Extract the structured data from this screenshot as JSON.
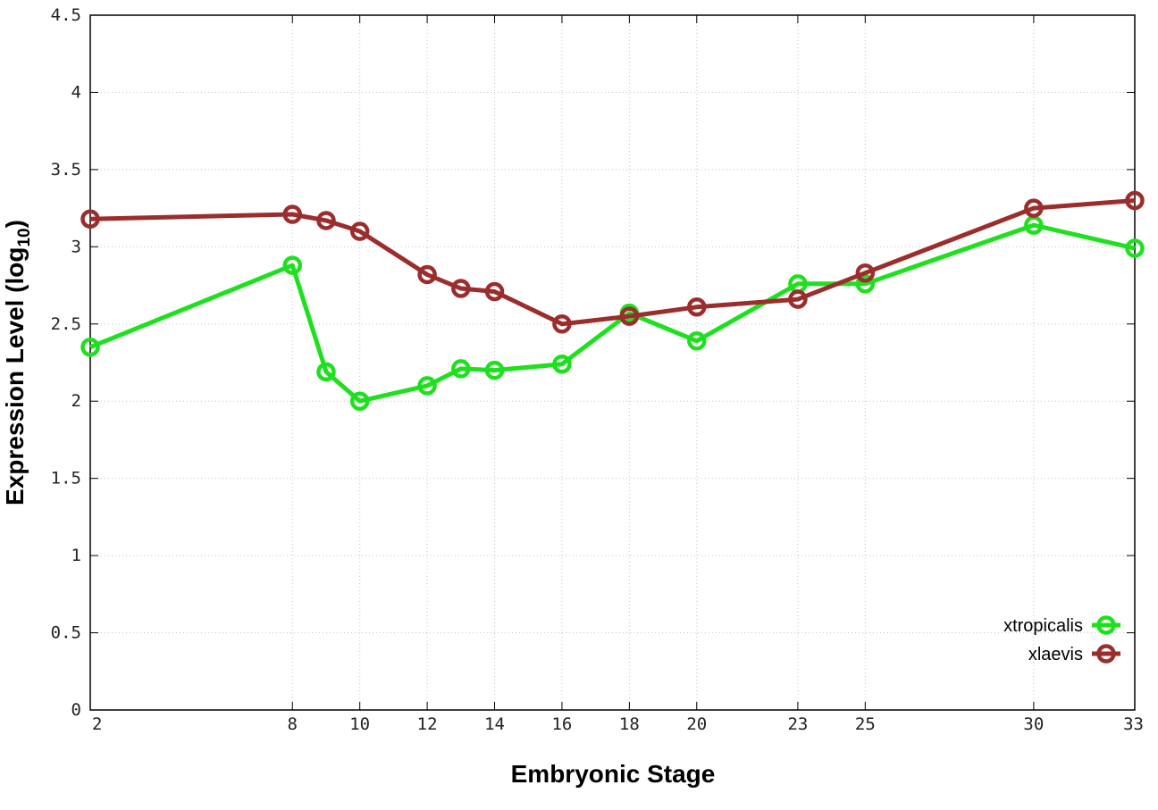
{
  "chart_data": {
    "type": "line",
    "xlabel": "Embryonic Stage",
    "ylabel_main": "Expression Level (log",
    "ylabel_sub": "10",
    "ylabel_close": ")",
    "xlim": [
      2,
      33
    ],
    "ylim": [
      0,
      4.5
    ],
    "x_ticks": [
      2,
      8,
      10,
      12,
      14,
      16,
      18,
      20,
      23,
      25,
      30,
      33
    ],
    "y_ticks": [
      0,
      0.5,
      1,
      1.5,
      2,
      2.5,
      3,
      3.5,
      4,
      4.5
    ],
    "y_tick_labels": [
      "0",
      "0.5",
      "1",
      "1.5",
      "2",
      "2.5",
      "3",
      "3.5",
      "4",
      "4.5"
    ],
    "grid": true,
    "legend_position": "bottom-right",
    "series": [
      {
        "name": "xtropicalis",
        "color": "#1fe01f",
        "x": [
          2,
          8,
          9,
          10,
          12,
          13,
          14,
          16,
          18,
          20,
          23,
          25,
          30,
          33
        ],
        "y": [
          2.35,
          2.88,
          2.19,
          2.0,
          2.1,
          2.21,
          2.2,
          2.24,
          2.57,
          2.39,
          2.76,
          2.76,
          3.14,
          2.99
        ]
      },
      {
        "name": "xlaevis",
        "color": "#9b2d2d",
        "x": [
          2,
          8,
          9,
          10,
          12,
          13,
          14,
          16,
          18,
          20,
          23,
          25,
          30,
          33
        ],
        "y": [
          3.18,
          3.21,
          3.17,
          3.1,
          2.82,
          2.73,
          2.71,
          2.5,
          2.55,
          2.61,
          2.66,
          2.83,
          3.25,
          3.3
        ]
      }
    ]
  }
}
